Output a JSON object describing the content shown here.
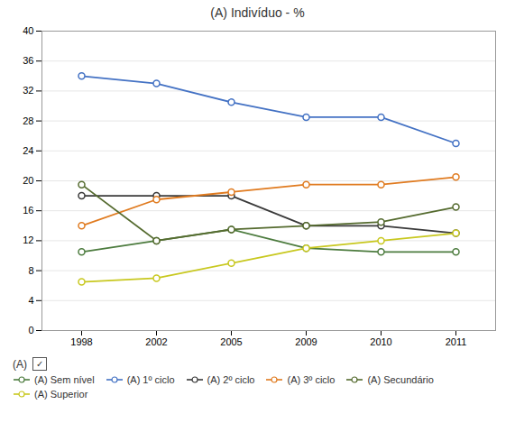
{
  "chart_data": {
    "type": "line",
    "title": "(A) Indivíduo - %",
    "categories": [
      "1998",
      "2002",
      "2005",
      "2009",
      "2010",
      "2011"
    ],
    "series": [
      {
        "name": "(A) Sem nível",
        "color": "#4d7c3f",
        "values": [
          10.5,
          12.0,
          13.5,
          11.0,
          10.5,
          10.5
        ],
        "marker": "circle",
        "line_style": "solid"
      },
      {
        "name": "(A) 1º ciclo",
        "color": "#4472c4",
        "values": [
          34.0,
          33.0,
          30.5,
          28.5,
          28.5,
          25.0
        ],
        "marker": "circle",
        "line_style": "solid"
      },
      {
        "name": "(A) 2º ciclo",
        "color": "#3a3a3a",
        "values": [
          18.0,
          18.0,
          18.0,
          14.0,
          14.0,
          13.0
        ],
        "marker": "circle",
        "line_style": "solid"
      },
      {
        "name": "(A) 3º ciclo",
        "color": "#e07b20",
        "values": [
          14.0,
          17.5,
          18.5,
          19.5,
          19.5,
          20.5
        ],
        "marker": "circle",
        "line_style": "solid"
      },
      {
        "name": "(A) Secundário",
        "color": "#556b2f",
        "values": [
          19.5,
          12.0,
          13.5,
          14.0,
          14.5,
          16.5
        ],
        "marker": "circle",
        "line_style": "solid"
      },
      {
        "name": "(A) Superior",
        "color": "#c8c820",
        "values": [
          6.5,
          7.0,
          9.0,
          11.0,
          12.0,
          13.0
        ],
        "marker": "circle",
        "line_style": "solid"
      }
    ],
    "xlabel": "(A)",
    "annotations": [
      "✓"
    ],
    "ylim": [
      0,
      40
    ],
    "yticks": [
      0,
      4,
      8,
      12,
      16,
      20,
      24,
      28,
      32,
      36,
      40
    ],
    "grid": true,
    "legend": "bottom"
  }
}
